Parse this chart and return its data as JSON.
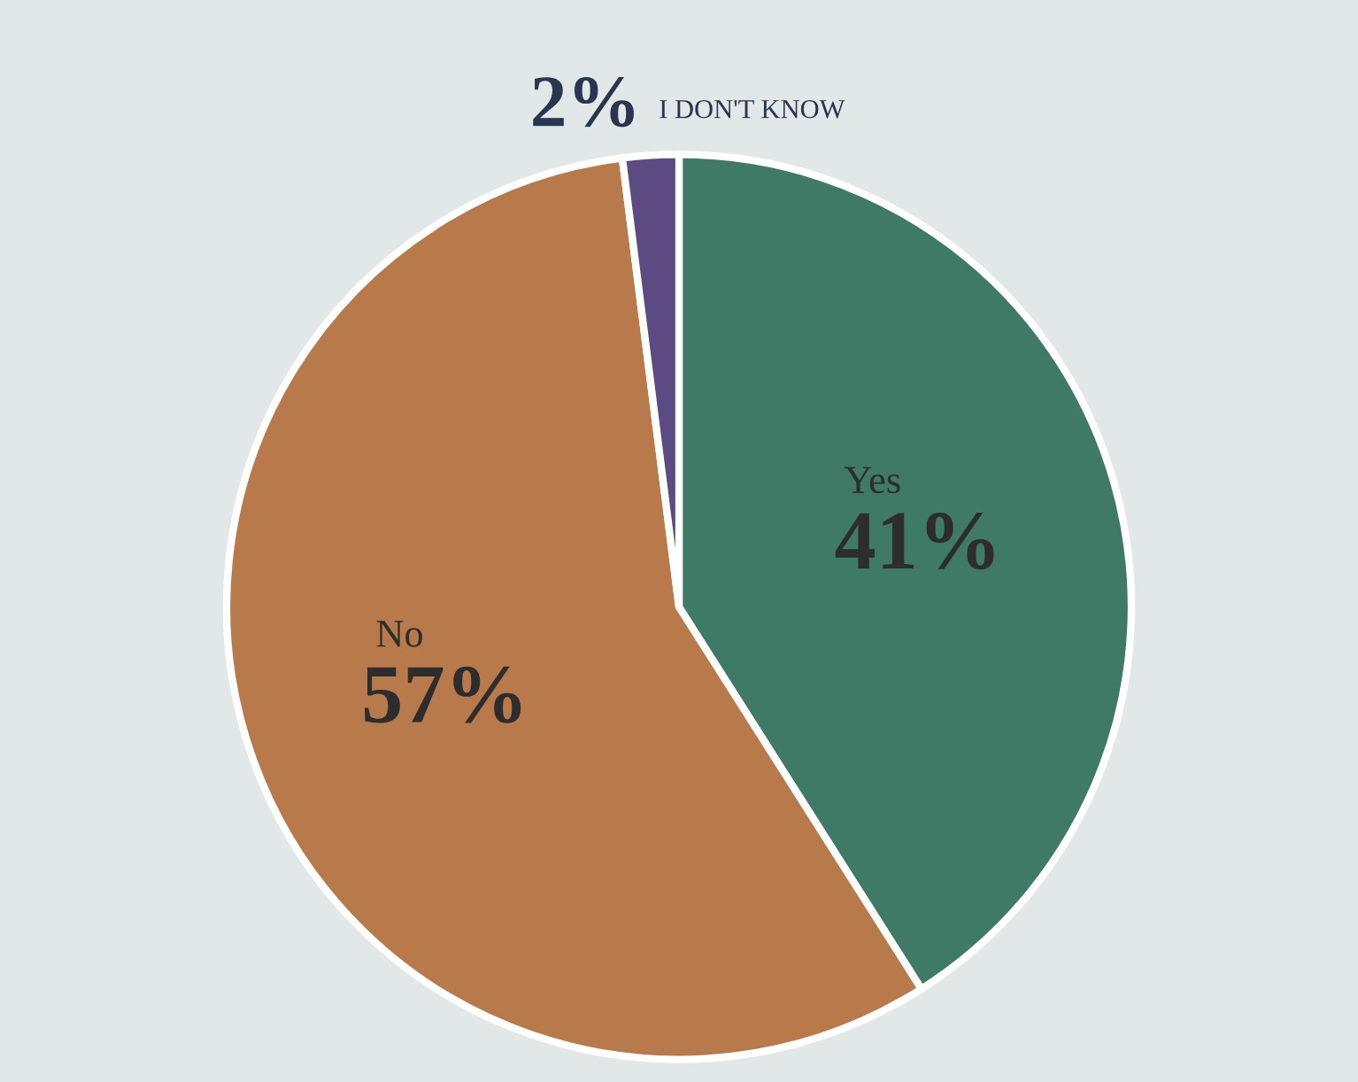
{
  "chart_data": {
    "type": "pie",
    "categories": [
      "Yes",
      "No",
      "I DON'T KNOW"
    ],
    "values": [
      41,
      57,
      2
    ],
    "value_labels": [
      "41%",
      "57%",
      "2%"
    ],
    "colors": [
      "#3f7a66",
      "#b87a4b",
      "#5b4b82"
    ]
  }
}
